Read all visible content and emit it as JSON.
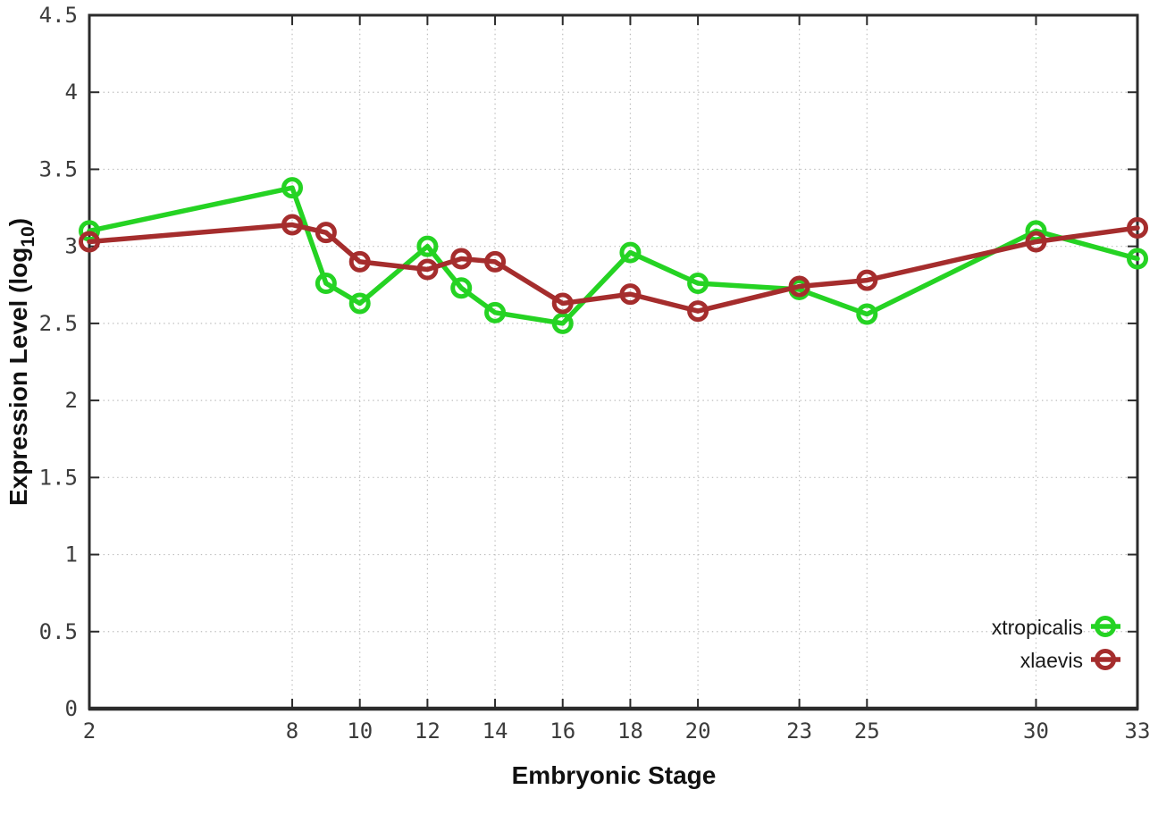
{
  "chart_data": {
    "type": "line",
    "title": "",
    "xlabel": "Embryonic Stage",
    "ylabel": "Expression Level (log10)",
    "ylabel_rich": {
      "main": "Expression Level (log",
      "subscript": "10",
      "after": ")"
    },
    "x": [
      2,
      8,
      9,
      10,
      12,
      13,
      14,
      16,
      18,
      20,
      23,
      25,
      30,
      33
    ],
    "series": [
      {
        "name": "xtropicalis",
        "color": "#25d323",
        "marker": "open-circle",
        "values": [
          3.1,
          3.38,
          2.76,
          2.63,
          3.0,
          2.73,
          2.57,
          2.5,
          2.96,
          2.76,
          2.72,
          2.56,
          3.1,
          2.92
        ]
      },
      {
        "name": "xlaevis",
        "color": "#a52d2d",
        "marker": "open-circle",
        "values": [
          3.03,
          3.14,
          3.09,
          2.9,
          2.85,
          2.92,
          2.9,
          2.63,
          2.69,
          2.58,
          2.74,
          2.78,
          3.03,
          3.12
        ]
      }
    ],
    "xlim": [
      2,
      33
    ],
    "ylim": [
      0,
      4.5
    ],
    "xticks": {
      "values": [
        2,
        8,
        10,
        12,
        14,
        16,
        18,
        20,
        23,
        25,
        30,
        33
      ],
      "labels": [
        "2",
        "8",
        "10",
        "12",
        "14",
        "16",
        "18",
        "20",
        "23",
        "25",
        "30",
        "33"
      ]
    },
    "yticks": {
      "values": [
        0,
        0.5,
        1,
        1.5,
        2,
        2.5,
        3,
        3.5,
        4,
        4.5
      ],
      "labels": [
        "0",
        "0.5",
        "1",
        "1.5",
        "2",
        "2.5",
        "3",
        "3.5",
        "4",
        "4.5"
      ]
    },
    "grid": "dotted",
    "legend": {
      "position": "bottom-right",
      "entries": [
        "xtropicalis",
        "xlaevis"
      ]
    }
  },
  "style_colors": {
    "background": "#ffffff",
    "axis_border": "#2b2b2b",
    "grid": "#bdbdbd",
    "tick_label": "#3c3c3c",
    "green_series": "#25d323",
    "red_series": "#a52d2d"
  }
}
